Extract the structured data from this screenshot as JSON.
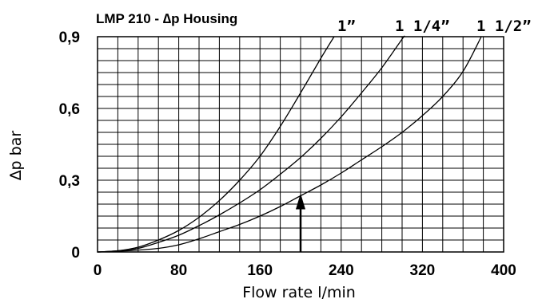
{
  "chart_data": {
    "type": "line",
    "title": "LMP 210 - ∆p Housing",
    "xlabel": "Flow rate l/min",
    "ylabel": "∆p bar",
    "xlim": [
      0,
      400
    ],
    "ylim": [
      0,
      0.9
    ],
    "x_ticks": [
      0,
      80,
      160,
      240,
      320,
      400
    ],
    "x_tick_labels": [
      "0",
      "80",
      "160",
      "240",
      "320",
      "400"
    ],
    "y_ticks": [
      0,
      0.3,
      0.6,
      0.9
    ],
    "y_tick_labels": [
      "0",
      "0,3",
      "0,6",
      "0,9"
    ],
    "grid": true,
    "x_grid_step": 20,
    "y_grid_step": 0.05,
    "series": [
      {
        "name": "1”",
        "x": [
          0,
          20,
          40,
          60,
          80,
          100,
          120,
          140,
          160,
          180,
          200,
          220,
          233
        ],
        "y": [
          0,
          0.005,
          0.02,
          0.05,
          0.09,
          0.145,
          0.215,
          0.3,
          0.4,
          0.525,
          0.665,
          0.81,
          0.9
        ]
      },
      {
        "name": "1 1/4”",
        "x": [
          0,
          20,
          40,
          60,
          80,
          100,
          120,
          140,
          160,
          180,
          200,
          220,
          240,
          260,
          280,
          300,
          302
        ],
        "y": [
          0,
          0.005,
          0.015,
          0.04,
          0.07,
          0.11,
          0.155,
          0.205,
          0.26,
          0.325,
          0.395,
          0.475,
          0.565,
          0.665,
          0.77,
          0.89,
          0.9
        ]
      },
      {
        "name": "1 1/2”",
        "x": [
          0,
          20,
          40,
          60,
          80,
          100,
          120,
          140,
          160,
          180,
          200,
          220,
          240,
          260,
          280,
          300,
          320,
          340,
          360,
          378
        ],
        "y": [
          0,
          0.003,
          0.008,
          0.015,
          0.03,
          0.055,
          0.085,
          0.115,
          0.15,
          0.19,
          0.235,
          0.28,
          0.33,
          0.385,
          0.44,
          0.5,
          0.57,
          0.65,
          0.755,
          0.9
        ]
      }
    ],
    "annotations": [
      {
        "type": "arrow",
        "x": 200,
        "y_from": 0,
        "y_to": 0.245
      }
    ]
  }
}
